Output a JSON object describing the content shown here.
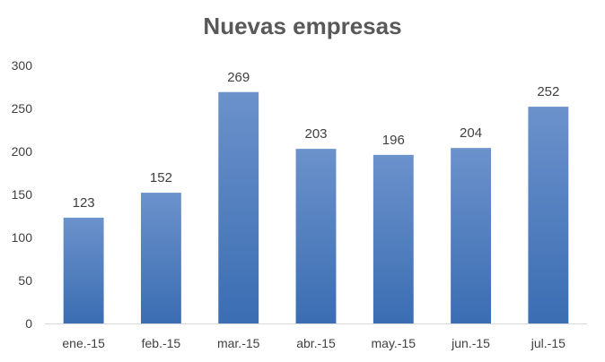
{
  "chart_data": {
    "type": "bar",
    "title": "Nuevas empresas",
    "xlabel": "",
    "ylabel": "",
    "categories": [
      "ene.-15",
      "feb.-15",
      "mar.-15",
      "abr.-15",
      "may.-15",
      "jun.-15",
      "jul.-15"
    ],
    "values": [
      123,
      152,
      269,
      203,
      196,
      204,
      252
    ],
    "data_labels": [
      "123",
      "152",
      "269",
      "203",
      "196",
      "204",
      "252"
    ],
    "ylim": [
      0,
      300
    ],
    "yticks": [
      0,
      50,
      100,
      150,
      200,
      250,
      300
    ],
    "ytick_labels": [
      "0",
      "50",
      "100",
      "150",
      "200",
      "250",
      "300"
    ],
    "grid": false,
    "legend": "none",
    "colors": {
      "bar_top": "#6b92cb",
      "bar_bottom": "#3b6db3",
      "axis": "#d9d9d9",
      "text": "#404040",
      "title": "#595959"
    }
  }
}
